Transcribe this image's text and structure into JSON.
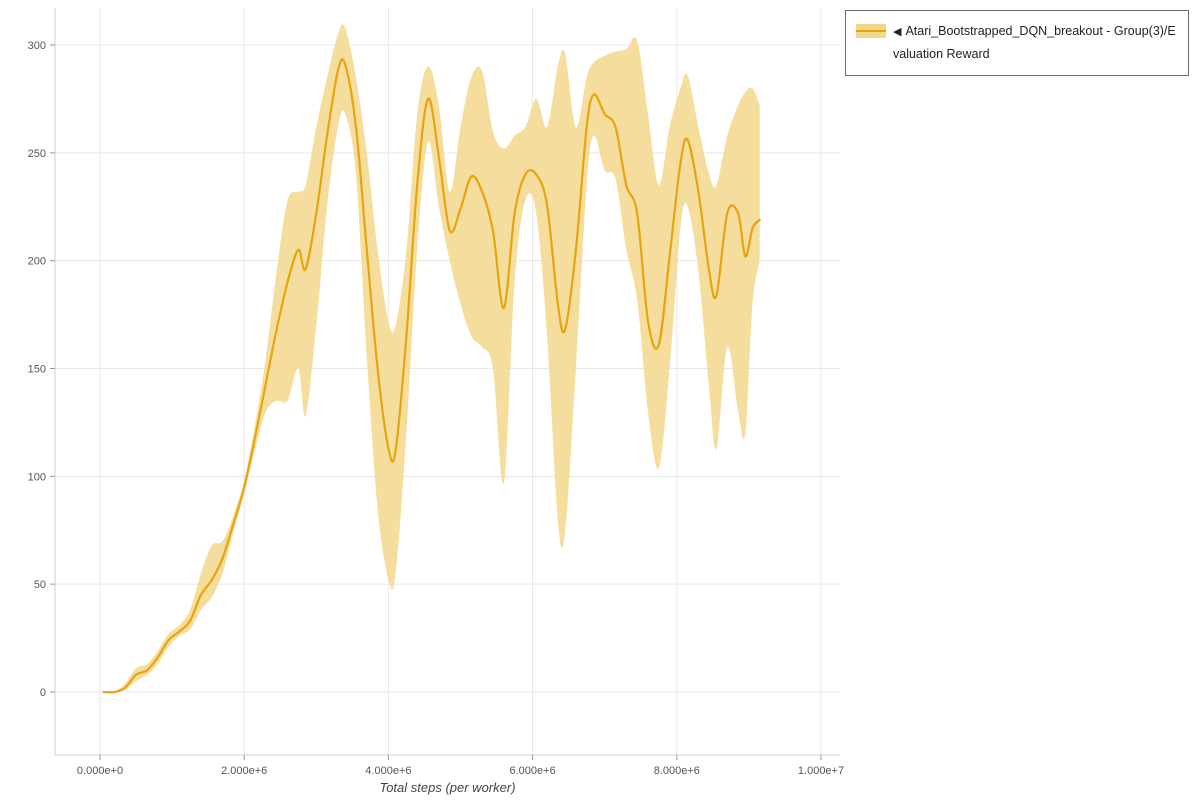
{
  "legend": {
    "collapse_icon": "◀",
    "label": "Atari_Bootstrapped_DQN_breakout - Group(3)/Evaluation Reward"
  },
  "axes": {
    "x_title": "Total steps (per worker)",
    "x_tick_labels": [
      "0.000e+0",
      "2.000e+6",
      "4.000e+6",
      "6.000e+6",
      "8.000e+6",
      "1.000e+7"
    ],
    "y_tick_labels": [
      "0",
      "50",
      "100",
      "150",
      "200",
      "250",
      "300"
    ]
  },
  "colors": {
    "line": "#e6a40e",
    "band": "#f3d88c",
    "grid": "#e8e8e8",
    "border": "#cfcfcf",
    "tick": "#999999",
    "label": "#555555"
  },
  "chart_data": {
    "type": "line",
    "title": "",
    "xlabel": "Total steps (per worker)",
    "ylabel": "",
    "xlim": [
      0,
      10000000
    ],
    "ylim": [
      0,
      300
    ],
    "x_ticks": [
      0,
      2000000,
      4000000,
      6000000,
      8000000,
      10000000
    ],
    "y_ticks": [
      0,
      50,
      100,
      150,
      200,
      250,
      300
    ],
    "grid": true,
    "legend_position": "top-right",
    "series": [
      {
        "name": "Atari_Bootstrapped_DQN_breakout - Group(3)/Evaluation Reward",
        "x": [
          50000,
          200000,
          350000,
          500000,
          650000,
          800000,
          950000,
          1100000,
          1250000,
          1400000,
          1550000,
          1700000,
          1850000,
          2000000,
          2150000,
          2300000,
          2450000,
          2600000,
          2750000,
          2850000,
          3000000,
          3150000,
          3300000,
          3400000,
          3550000,
          3700000,
          3850000,
          4000000,
          4100000,
          4250000,
          4400000,
          4550000,
          4700000,
          4850000,
          5000000,
          5150000,
          5300000,
          5450000,
          5600000,
          5750000,
          5900000,
          6050000,
          6200000,
          6350000,
          6450000,
          6600000,
          6750000,
          6850000,
          7000000,
          7150000,
          7300000,
          7450000,
          7600000,
          7750000,
          7900000,
          8050000,
          8150000,
          8300000,
          8450000,
          8550000,
          8700000,
          8850000,
          8950000,
          9050000,
          9150000
        ],
        "mean": [
          0,
          0,
          2,
          8,
          10,
          16,
          24,
          28,
          33,
          45,
          52,
          62,
          78,
          95,
          118,
          143,
          168,
          190,
          205,
          196,
          222,
          258,
          288,
          291,
          262,
          205,
          150,
          113,
          112,
          165,
          235,
          275,
          248,
          214,
          224,
          239,
          232,
          214,
          178,
          222,
          240,
          240,
          226,
          180,
          168,
          205,
          262,
          277,
          268,
          262,
          235,
          222,
          172,
          161,
          202,
          245,
          256,
          232,
          195,
          184,
          222,
          222,
          202,
          215,
          219
        ],
        "band_lower": [
          0,
          0,
          1,
          5,
          8,
          13,
          21,
          26,
          29,
          38,
          44,
          55,
          74,
          92,
          112,
          130,
          135,
          135,
          150,
          128,
          170,
          225,
          262,
          268,
          240,
          155,
          85,
          52,
          55,
          120,
          205,
          255,
          225,
          200,
          180,
          165,
          160,
          150,
          97,
          190,
          228,
          222,
          165,
          80,
          74,
          150,
          235,
          258,
          242,
          238,
          205,
          182,
          130,
          104,
          150,
          215,
          225,
          195,
          140,
          113,
          160,
          130,
          120,
          180,
          200
        ],
        "band_upper": [
          0,
          0,
          4,
          11,
          13,
          19,
          27,
          31,
          38,
          55,
          68,
          70,
          82,
          98,
          124,
          155,
          195,
          228,
          232,
          235,
          262,
          285,
          305,
          308,
          285,
          250,
          205,
          172,
          170,
          205,
          268,
          290,
          272,
          232,
          262,
          285,
          288,
          260,
          252,
          258,
          262,
          275,
          262,
          290,
          296,
          262,
          285,
          292,
          295,
          297,
          298,
          302,
          268,
          235,
          262,
          280,
          286,
          262,
          240,
          235,
          258,
          272,
          278,
          280,
          272
        ]
      }
    ]
  }
}
